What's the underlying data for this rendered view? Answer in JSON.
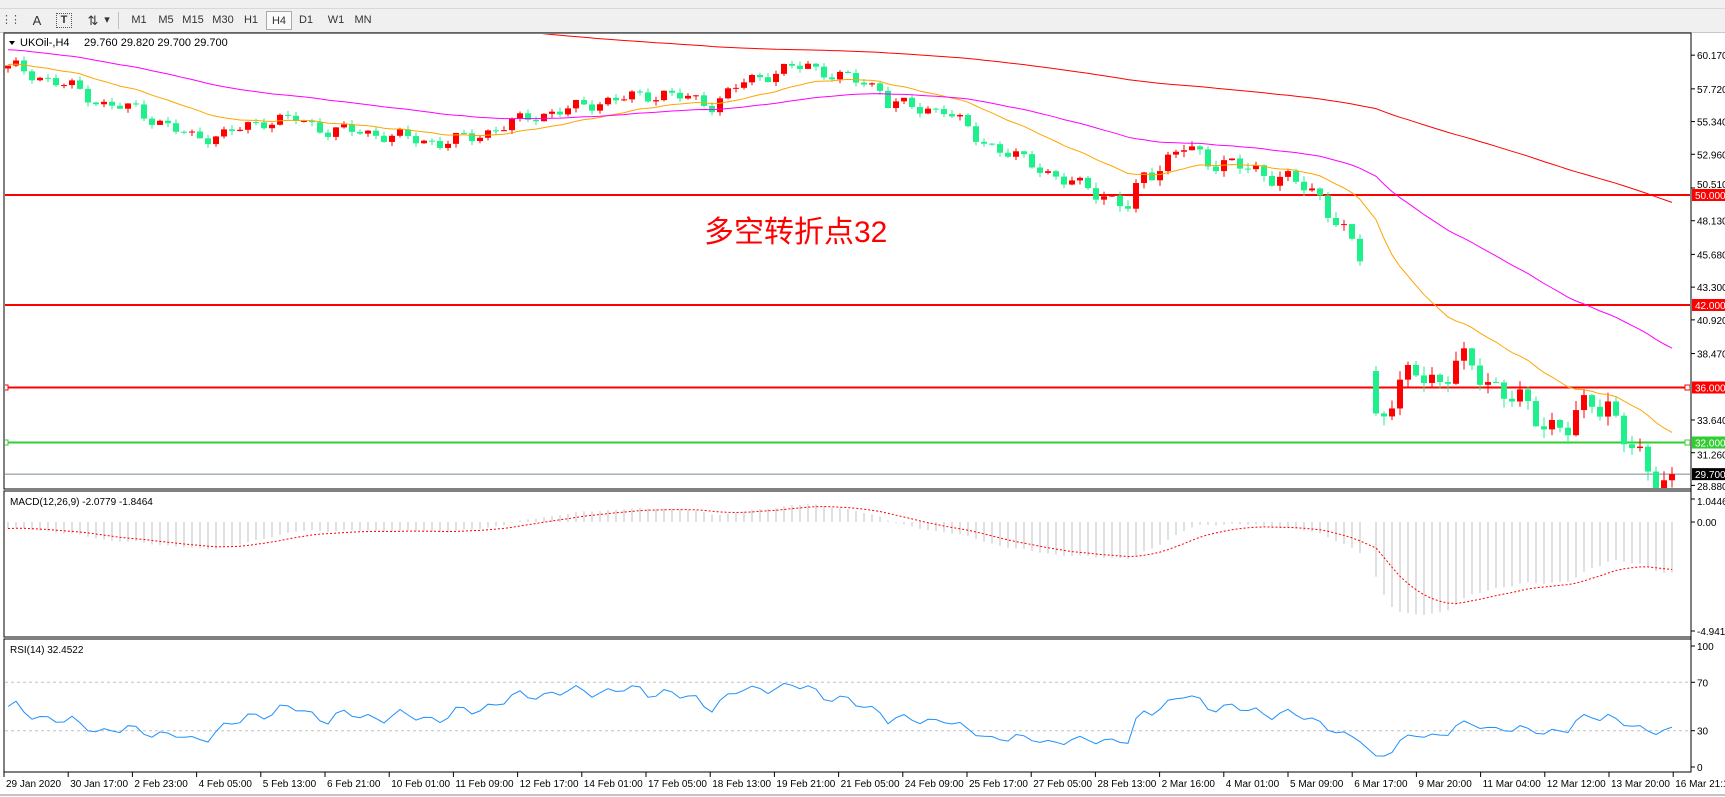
{
  "toolbar": {
    "tools": [
      {
        "name": "grid-icon",
        "glyph": "⋮⋮"
      },
      {
        "name": "text-icon",
        "glyph": "A"
      },
      {
        "name": "text-label-icon",
        "glyph": "T"
      },
      {
        "name": "arrows-icon",
        "glyph": "⇅"
      },
      {
        "name": "dropdown-icon",
        "glyph": "▾"
      }
    ],
    "timeframes": [
      "M1",
      "M5",
      "M15",
      "M30",
      "H1",
      "H4",
      "D1",
      "W1",
      "MN"
    ],
    "active_timeframe": "H4"
  },
  "chart": {
    "title": "UKOil-,H4",
    "ohlc": "29.760 29.820 29.700 29.700",
    "annotation": "多空转折点32",
    "price_axis": [
      "60.170",
      "57.720",
      "55.340",
      "52.960",
      "50.510",
      "48.130",
      "45.680",
      "43.300",
      "40.920",
      "38.470",
      "33.640",
      "31.260",
      "28.880"
    ],
    "levels": [
      {
        "price": 50.0,
        "label": "50.000",
        "color": "#ff0000"
      },
      {
        "price": 42.0,
        "label": "42.000",
        "color": "#ff0000"
      },
      {
        "price": 36.0,
        "label": "36.000",
        "color": "#ff0000"
      },
      {
        "price": 32.0,
        "label": "32.000",
        "color": "#32cd32"
      }
    ],
    "bid": {
      "price": 29.7,
      "label": "29.700",
      "color": "#778899"
    },
    "colors": {
      "bull": "#ff0000",
      "bear": "#1ef08c",
      "ma_fast": "#ffa500",
      "ma_mid": "#ff00ff",
      "ma_slow": "#ff0000",
      "rsi": "#1e90ff",
      "macd_hist": "#c0c0c0",
      "macd_signal": "#ff0000",
      "annotation": "#ff0000"
    },
    "close_path": [
      [
        1,
        59.2
      ],
      [
        4,
        58.6
      ],
      [
        8,
        57.8
      ],
      [
        12,
        56.6
      ],
      [
        16,
        56.2
      ],
      [
        21,
        54.7
      ],
      [
        23,
        54.2
      ],
      [
        27,
        54.4
      ],
      [
        32,
        55.4
      ],
      [
        36,
        55.5
      ],
      [
        40,
        54.7
      ],
      [
        44,
        54.6
      ],
      [
        49,
        54.2
      ],
      [
        54,
        53.8
      ],
      [
        58,
        54.2
      ],
      [
        62,
        55.0
      ],
      [
        66,
        55.8
      ],
      [
        70,
        56.2
      ],
      [
        74,
        56.8
      ],
      [
        78,
        57.1
      ],
      [
        82,
        57.4
      ],
      [
        88,
        56.6
      ],
      [
        92,
        58.2
      ],
      [
        96,
        59.0
      ],
      [
        100,
        59.4
      ],
      [
        104,
        58.6
      ],
      [
        109,
        57.8
      ],
      [
        110,
        56.8
      ],
      [
        114,
        56.2
      ],
      [
        117,
        56.3
      ],
      [
        121,
        54.2
      ],
      [
        125,
        53.0
      ],
      [
        129,
        52.0
      ],
      [
        132,
        51.0
      ],
      [
        136,
        50.4
      ],
      [
        140,
        49.0
      ],
      [
        142,
        51.4
      ],
      [
        144,
        52.2
      ],
      [
        147,
        53.4
      ],
      [
        150,
        52.6
      ],
      [
        153,
        52.2
      ],
      [
        155,
        51.8
      ],
      [
        159,
        51.4
      ],
      [
        164,
        49.9
      ],
      [
        166,
        48.2
      ],
      [
        169,
        45.4
      ],
      [
        171,
        33.8
      ],
      [
        173,
        35.4
      ],
      [
        176,
        37.0
      ],
      [
        179,
        36.6
      ],
      [
        181,
        37.8
      ],
      [
        184,
        37.0
      ],
      [
        187,
        35.8
      ],
      [
        190,
        34.2
      ],
      [
        193,
        33.4
      ],
      [
        195,
        33.0
      ],
      [
        198,
        35.0
      ],
      [
        200,
        35.0
      ],
      [
        202,
        32.2
      ],
      [
        205,
        29.8
      ],
      [
        208,
        29.7
      ]
    ],
    "time_axis": [
      "29 Jan 2020",
      "30 Jan 17:00",
      "2 Feb 23:00",
      "4 Feb 05:00",
      "5 Feb 13:00",
      "6 Feb 21:00",
      "10 Feb 01:00",
      "11 Feb 09:00",
      "12 Feb 17:00",
      "14 Feb 01:00",
      "17 Feb 05:00",
      "18 Feb 13:00",
      "19 Feb 21:00",
      "21 Feb 05:00",
      "24 Feb 09:00",
      "25 Feb 17:00",
      "27 Feb 05:00",
      "28 Feb 13:00",
      "2 Mar 16:00",
      "4 Mar 01:00",
      "5 Mar 09:00",
      "6 Mar 17:00",
      "9 Mar 20:00",
      "11 Mar 04:00",
      "12 Mar 12:00",
      "13 Mar 20:00",
      "16 Mar 21:15"
    ]
  },
  "macd": {
    "label": "MACD(12,26,9) -2.0779 -1.8464",
    "axis": [
      "1.0446",
      "0.00",
      "-4.9417"
    ],
    "range": [
      -4.9417,
      1.0446
    ]
  },
  "rsi": {
    "label": "RSI(14) 32.4522",
    "axis": [
      "100",
      "70",
      "30",
      "0"
    ],
    "levels": [
      70,
      30
    ]
  }
}
